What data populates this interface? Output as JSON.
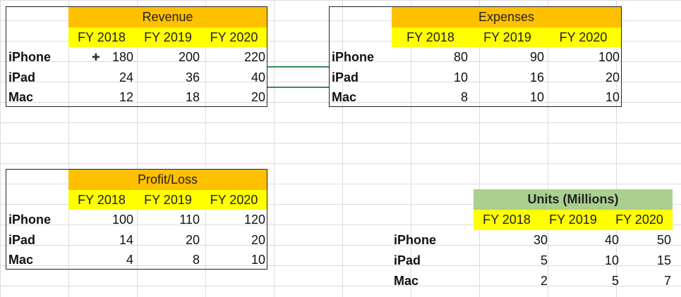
{
  "tables": {
    "revenue": {
      "title": "Revenue",
      "years": [
        "FY 2018",
        "FY 2019",
        "FY 2020"
      ],
      "rows": [
        {
          "label": "iPhone",
          "values": [
            "180",
            "200",
            "220"
          ]
        },
        {
          "label": "iPad",
          "values": [
            "24",
            "36",
            "40"
          ]
        },
        {
          "label": "Mac",
          "values": [
            "12",
            "18",
            "20"
          ]
        }
      ]
    },
    "expenses": {
      "title": "Expenses",
      "years": [
        "FY 2018",
        "FY 2019",
        "FY 2020"
      ],
      "rows": [
        {
          "label": "iPhone",
          "values": [
            "80",
            "90",
            "100"
          ]
        },
        {
          "label": "iPad",
          "values": [
            "10",
            "16",
            "20"
          ]
        },
        {
          "label": "Mac",
          "values": [
            "8",
            "10",
            "10"
          ]
        }
      ]
    },
    "profit": {
      "title": "Profit/Loss",
      "years": [
        "FY 2018",
        "FY 2019",
        "FY 2020"
      ],
      "rows": [
        {
          "label": "iPhone",
          "values": [
            "100",
            "110",
            "120"
          ]
        },
        {
          "label": "iPad",
          "values": [
            "14",
            "20",
            "20"
          ]
        },
        {
          "label": "Mac",
          "values": [
            "4",
            "8",
            "10"
          ]
        }
      ]
    },
    "units": {
      "title": "Units (Millions)",
      "years": [
        "FY 2018",
        "FY 2019",
        "FY 2020"
      ],
      "rows": [
        {
          "label": "iPhone",
          "values": [
            "30",
            "40",
            "50"
          ]
        },
        {
          "label": "iPad",
          "values": [
            "5",
            "10",
            "15"
          ]
        },
        {
          "label": "Mac",
          "values": [
            "2",
            "5",
            "7"
          ]
        }
      ]
    }
  },
  "colors": {
    "header_orange": "#ffc000",
    "header_yellow": "#ffff00",
    "header_green": "#a9d08e",
    "connector": "#3a8a5c"
  },
  "icons": {
    "cursor": "cell-select-cursor-icon"
  }
}
